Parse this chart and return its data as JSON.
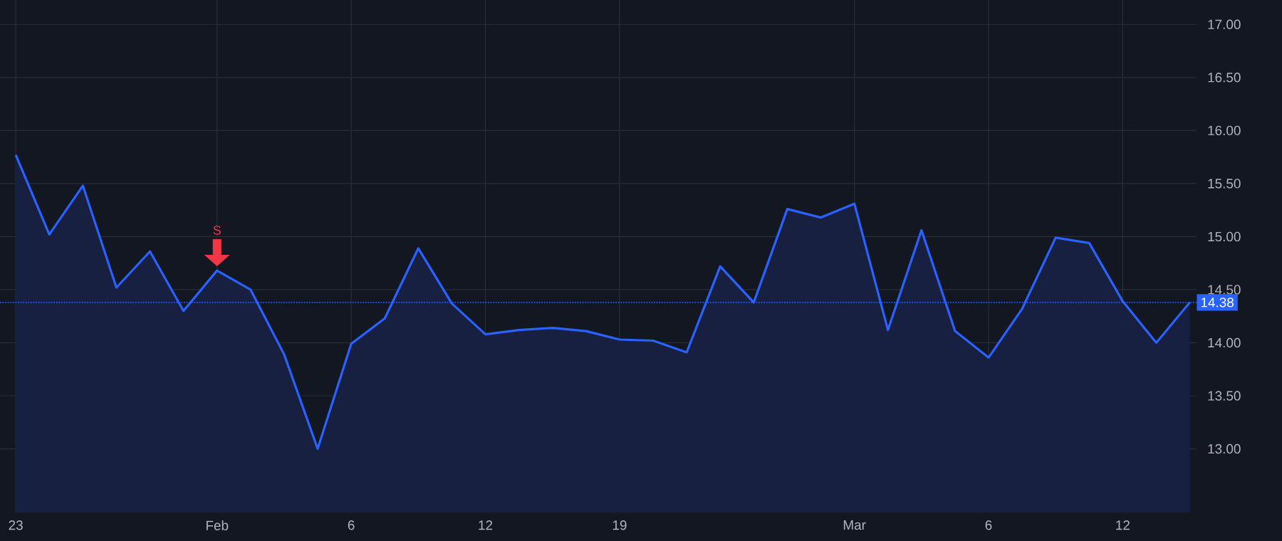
{
  "chart_data": {
    "type": "area",
    "color": "#2962ff",
    "grid": true,
    "line_style": "solid",
    "categories": [
      "23",
      null,
      null,
      null,
      null,
      null,
      "Feb",
      null,
      null,
      null,
      "6",
      null,
      null,
      null,
      "12",
      null,
      null,
      null,
      "19",
      null,
      null,
      null,
      null,
      null,
      null,
      "Mar",
      null,
      null,
      null,
      "6",
      null,
      null,
      null,
      "12",
      null,
      null
    ],
    "values": [
      15.77,
      15.02,
      15.48,
      14.52,
      14.86,
      14.3,
      14.68,
      14.5,
      13.89,
      13.0,
      13.99,
      14.23,
      14.89,
      14.37,
      14.08,
      14.12,
      14.14,
      14.11,
      14.03,
      14.02,
      13.91,
      14.72,
      14.38,
      15.26,
      15.18,
      15.31,
      14.12,
      15.06,
      14.11,
      13.86,
      14.32,
      14.99,
      14.94,
      14.39,
      14.0,
      14.38
    ],
    "ylim": [
      12.4,
      17.23
    ],
    "yticks": [
      {
        "value": 13,
        "label": "13.00"
      },
      {
        "value": 13.5,
        "label": "13.50"
      },
      {
        "value": 14,
        "label": "14.00"
      },
      {
        "value": 14.5,
        "label": "14.50"
      },
      {
        "value": 15,
        "label": "15.00"
      },
      {
        "value": 15.5,
        "label": "15.50"
      },
      {
        "value": 16,
        "label": "16.00"
      },
      {
        "value": 16.5,
        "label": "16.50"
      },
      {
        "value": 17,
        "label": "17.00"
      }
    ],
    "ref_lines": [
      {
        "axis": "y",
        "value": 14.38,
        "label": "14.38",
        "color": "#2962ff",
        "line_style": "dotted"
      }
    ],
    "annotations": [
      {
        "text": "S",
        "x": "Feb",
        "y": 14.68
      }
    ]
  }
}
